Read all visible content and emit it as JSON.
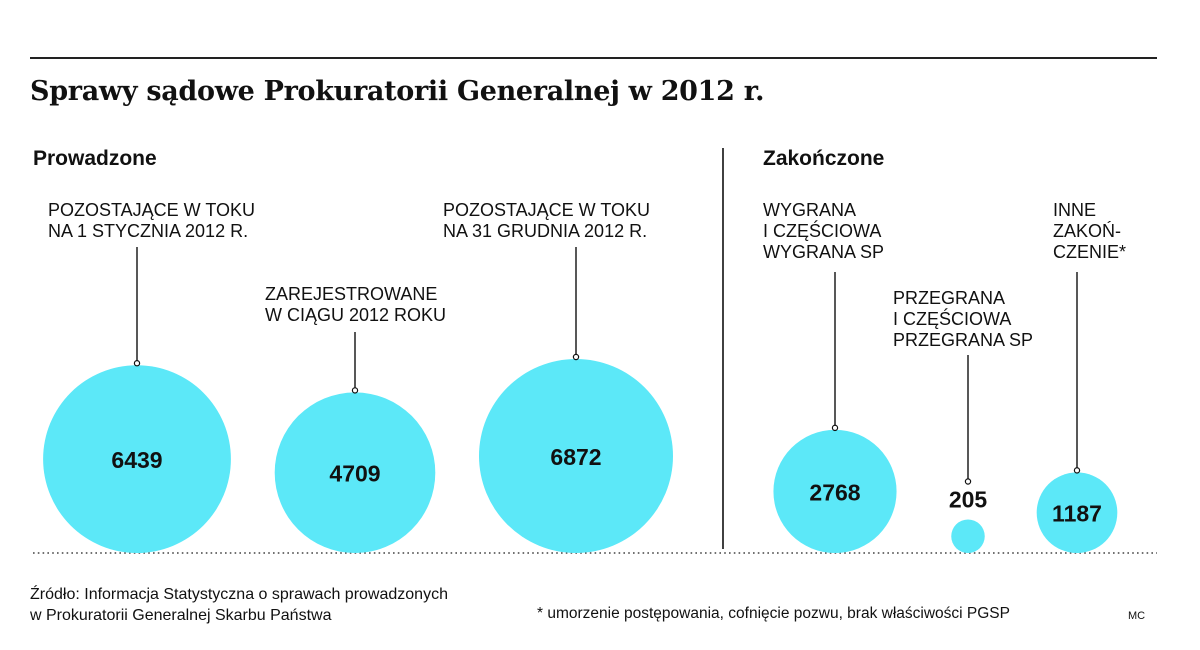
{
  "title": "Sprawy sądowe Prokuratorii Generalnej w 2012 r.",
  "sections": {
    "ongoing": "Prowadzone",
    "closed": "Zakończone"
  },
  "labels": {
    "l1": [
      "POZOSTAJĄCE W TOKU",
      "NA 1 STYCZNIA 2012 R."
    ],
    "l2": [
      "ZAREJESTROWANE",
      "W CIĄGU 2012 ROKU"
    ],
    "l3": [
      "POZOSTAJĄCE W TOKU",
      "NA 31 GRUDNIA 2012 R."
    ],
    "l4": [
      "WYGRANA",
      "I CZĘŚCIOWA",
      "WYGRANA SP"
    ],
    "l5": [
      "PRZEGRANA",
      "I CZĘŚCIOWA",
      "PRZEGRANA SP"
    ],
    "l6": [
      "INNE",
      "ZAKOŃ-",
      "CZENIE*"
    ]
  },
  "chart_data": {
    "type": "bubble",
    "categories": [
      "POZOSTAJĄCE W TOKU NA 1 STYCZNIA 2012 R.",
      "ZAREJESTROWANE W CIĄGU 2012 ROKU",
      "POZOSTAJĄCE W TOKU NA 31 GRUDNIA 2012 R.",
      "WYGRANA I CZĘŚCIOWA WYGRANA SP",
      "PRZEGRANA I CZĘŚCIOWA PRZEGRANA SP",
      "INNE ZAKOŃCZENIE*"
    ],
    "groups": [
      "Prowadzone",
      "Prowadzone",
      "Prowadzone",
      "Zakończone",
      "Zakończone",
      "Zakończone"
    ],
    "values": [
      6439,
      4709,
      6872,
      2768,
      205,
      1187
    ],
    "value_labels": [
      "6439",
      "4709",
      "6872",
      "2768",
      "205",
      "1187"
    ],
    "bubble_color": "#5ce8f8"
  },
  "footer": {
    "source_line1": "Źródło: Informacja Statystyczna o sprawach prowadzonych",
    "source_line2": "w Prokuratorii Generalnej Skarbu Państwa",
    "footnote": "* umorzenie postępowania, cofnięcie pozwu, brak właściwości PGSP",
    "credit": "MC"
  }
}
